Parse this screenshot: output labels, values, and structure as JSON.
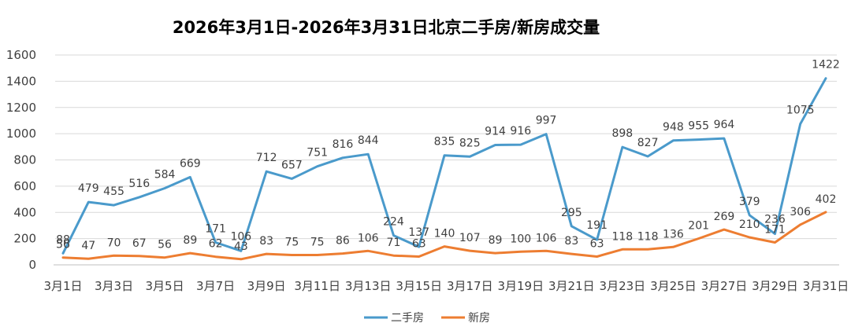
{
  "chart_data": {
    "type": "line",
    "title": "2026年3月1日-2026年3月31日北京二手房/新房成交量",
    "xlabel": "",
    "ylabel": "",
    "ylim": [
      0,
      1600
    ],
    "yticks": [
      0,
      200,
      400,
      600,
      800,
      1000,
      1200,
      1400,
      1600
    ],
    "categories": [
      "3月1日",
      "3月2日",
      "3月3日",
      "3月4日",
      "3月5日",
      "3月6日",
      "3月7日",
      "3月8日",
      "3月9日",
      "3月10日",
      "3月11日",
      "3月12日",
      "3月13日",
      "3月14日",
      "3月15日",
      "3月16日",
      "3月17日",
      "3月18日",
      "3月19日",
      "3月20日",
      "3月21日",
      "3月22日",
      "3月23日",
      "3月24日",
      "3月25日",
      "3月26日",
      "3月27日",
      "3月28日",
      "3月29日",
      "3月30日",
      "3月31日"
    ],
    "xtick_labels": [
      "3月1日",
      "3月3日",
      "3月5日",
      "3月7日",
      "3月9日",
      "3月11日",
      "3月13日",
      "3月15日",
      "3月17日",
      "3月19日",
      "3月21日",
      "3月23日",
      "3月25日",
      "3月27日",
      "3月29日",
      "3月31日"
    ],
    "grid": true,
    "legend": "bottom-center",
    "series": [
      {
        "name": "二手房",
        "color": "#4a9acb",
        "values": [
          88,
          479,
          455,
          516,
          584,
          669,
          171,
          106,
          712,
          657,
          751,
          816,
          844,
          224,
          137,
          835,
          825,
          914,
          916,
          997,
          295,
          191,
          898,
          827,
          948,
          955,
          964,
          379,
          236,
          1075,
          1422
        ]
      },
      {
        "name": "新房",
        "color": "#ed7d31",
        "values": [
          56,
          47,
          70,
          67,
          56,
          89,
          62,
          43,
          83,
          75,
          75,
          86,
          106,
          71,
          63,
          140,
          107,
          89,
          100,
          106,
          83,
          63,
          118,
          118,
          136,
          201,
          269,
          210,
          171,
          306,
          402
        ]
      }
    ]
  }
}
